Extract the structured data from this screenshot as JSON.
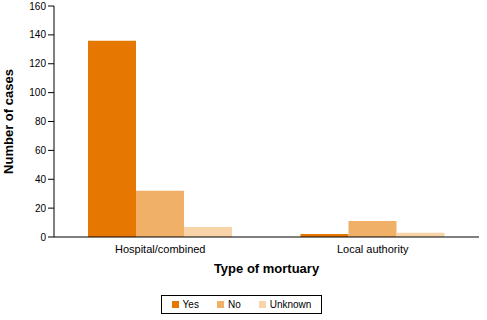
{
  "chart_data": {
    "type": "bar",
    "x_label": "Type of mortuary",
    "y_label": "Number of cases",
    "categories": [
      "Hospital/combined",
      "Local authority"
    ],
    "series": [
      {
        "name": "Yes",
        "color": "#e67700",
        "values": [
          136,
          2
        ]
      },
      {
        "name": "No",
        "color": "#f0b068",
        "values": [
          32,
          11
        ]
      },
      {
        "name": "Unknown",
        "color": "#f8d4a8",
        "values": [
          7,
          3
        ]
      }
    ],
    "ylim": [
      0,
      160
    ],
    "yticks": [
      0,
      20,
      40,
      60,
      80,
      100,
      120,
      140,
      160
    ],
    "grid": false,
    "legend": "bottom"
  }
}
